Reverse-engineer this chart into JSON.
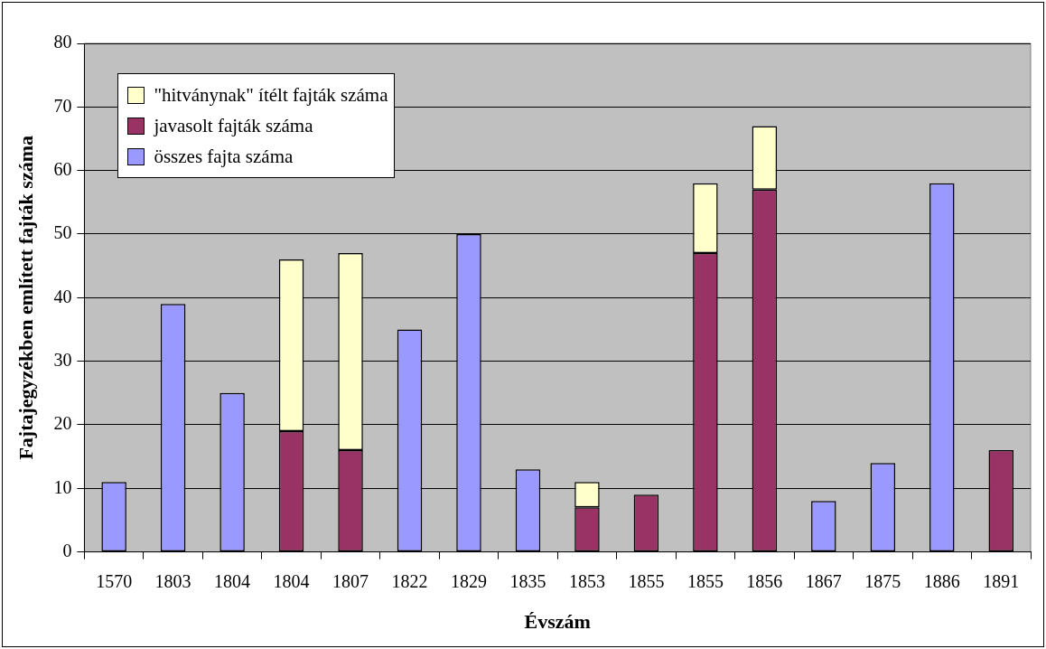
{
  "chart_data": {
    "type": "bar",
    "stacked": true,
    "xlabel": "Évszám",
    "ylabel": "Fajtajegyzékben említett fajták száma",
    "categories": [
      "1570",
      "1803",
      "1804",
      "1804",
      "1807",
      "1822",
      "1829",
      "1835",
      "1853",
      "1855",
      "1855",
      "1856",
      "1867",
      "1875",
      "1886",
      "1891"
    ],
    "series": [
      {
        "name": "összes fajta száma",
        "color": "#9999ff",
        "values": [
          11,
          39,
          25,
          null,
          null,
          35,
          50,
          13,
          null,
          null,
          null,
          null,
          8,
          14,
          58,
          null
        ]
      },
      {
        "name": "javasolt fajták száma",
        "color": "#993366",
        "values": [
          null,
          null,
          null,
          19,
          16,
          null,
          null,
          null,
          7,
          9,
          47,
          57,
          null,
          null,
          null,
          16
        ]
      },
      {
        "name": "\"hitványnak\" ítélt fajták száma",
        "color": "#ffffcc",
        "values": [
          null,
          null,
          null,
          27,
          31,
          null,
          null,
          null,
          4,
          null,
          11,
          10,
          null,
          null,
          null,
          null
        ]
      }
    ],
    "ylim": [
      0,
      80
    ],
    "yticks": [
      0,
      10,
      20,
      30,
      40,
      50,
      60,
      70,
      80
    ],
    "grid": "y",
    "legend": "top left"
  }
}
